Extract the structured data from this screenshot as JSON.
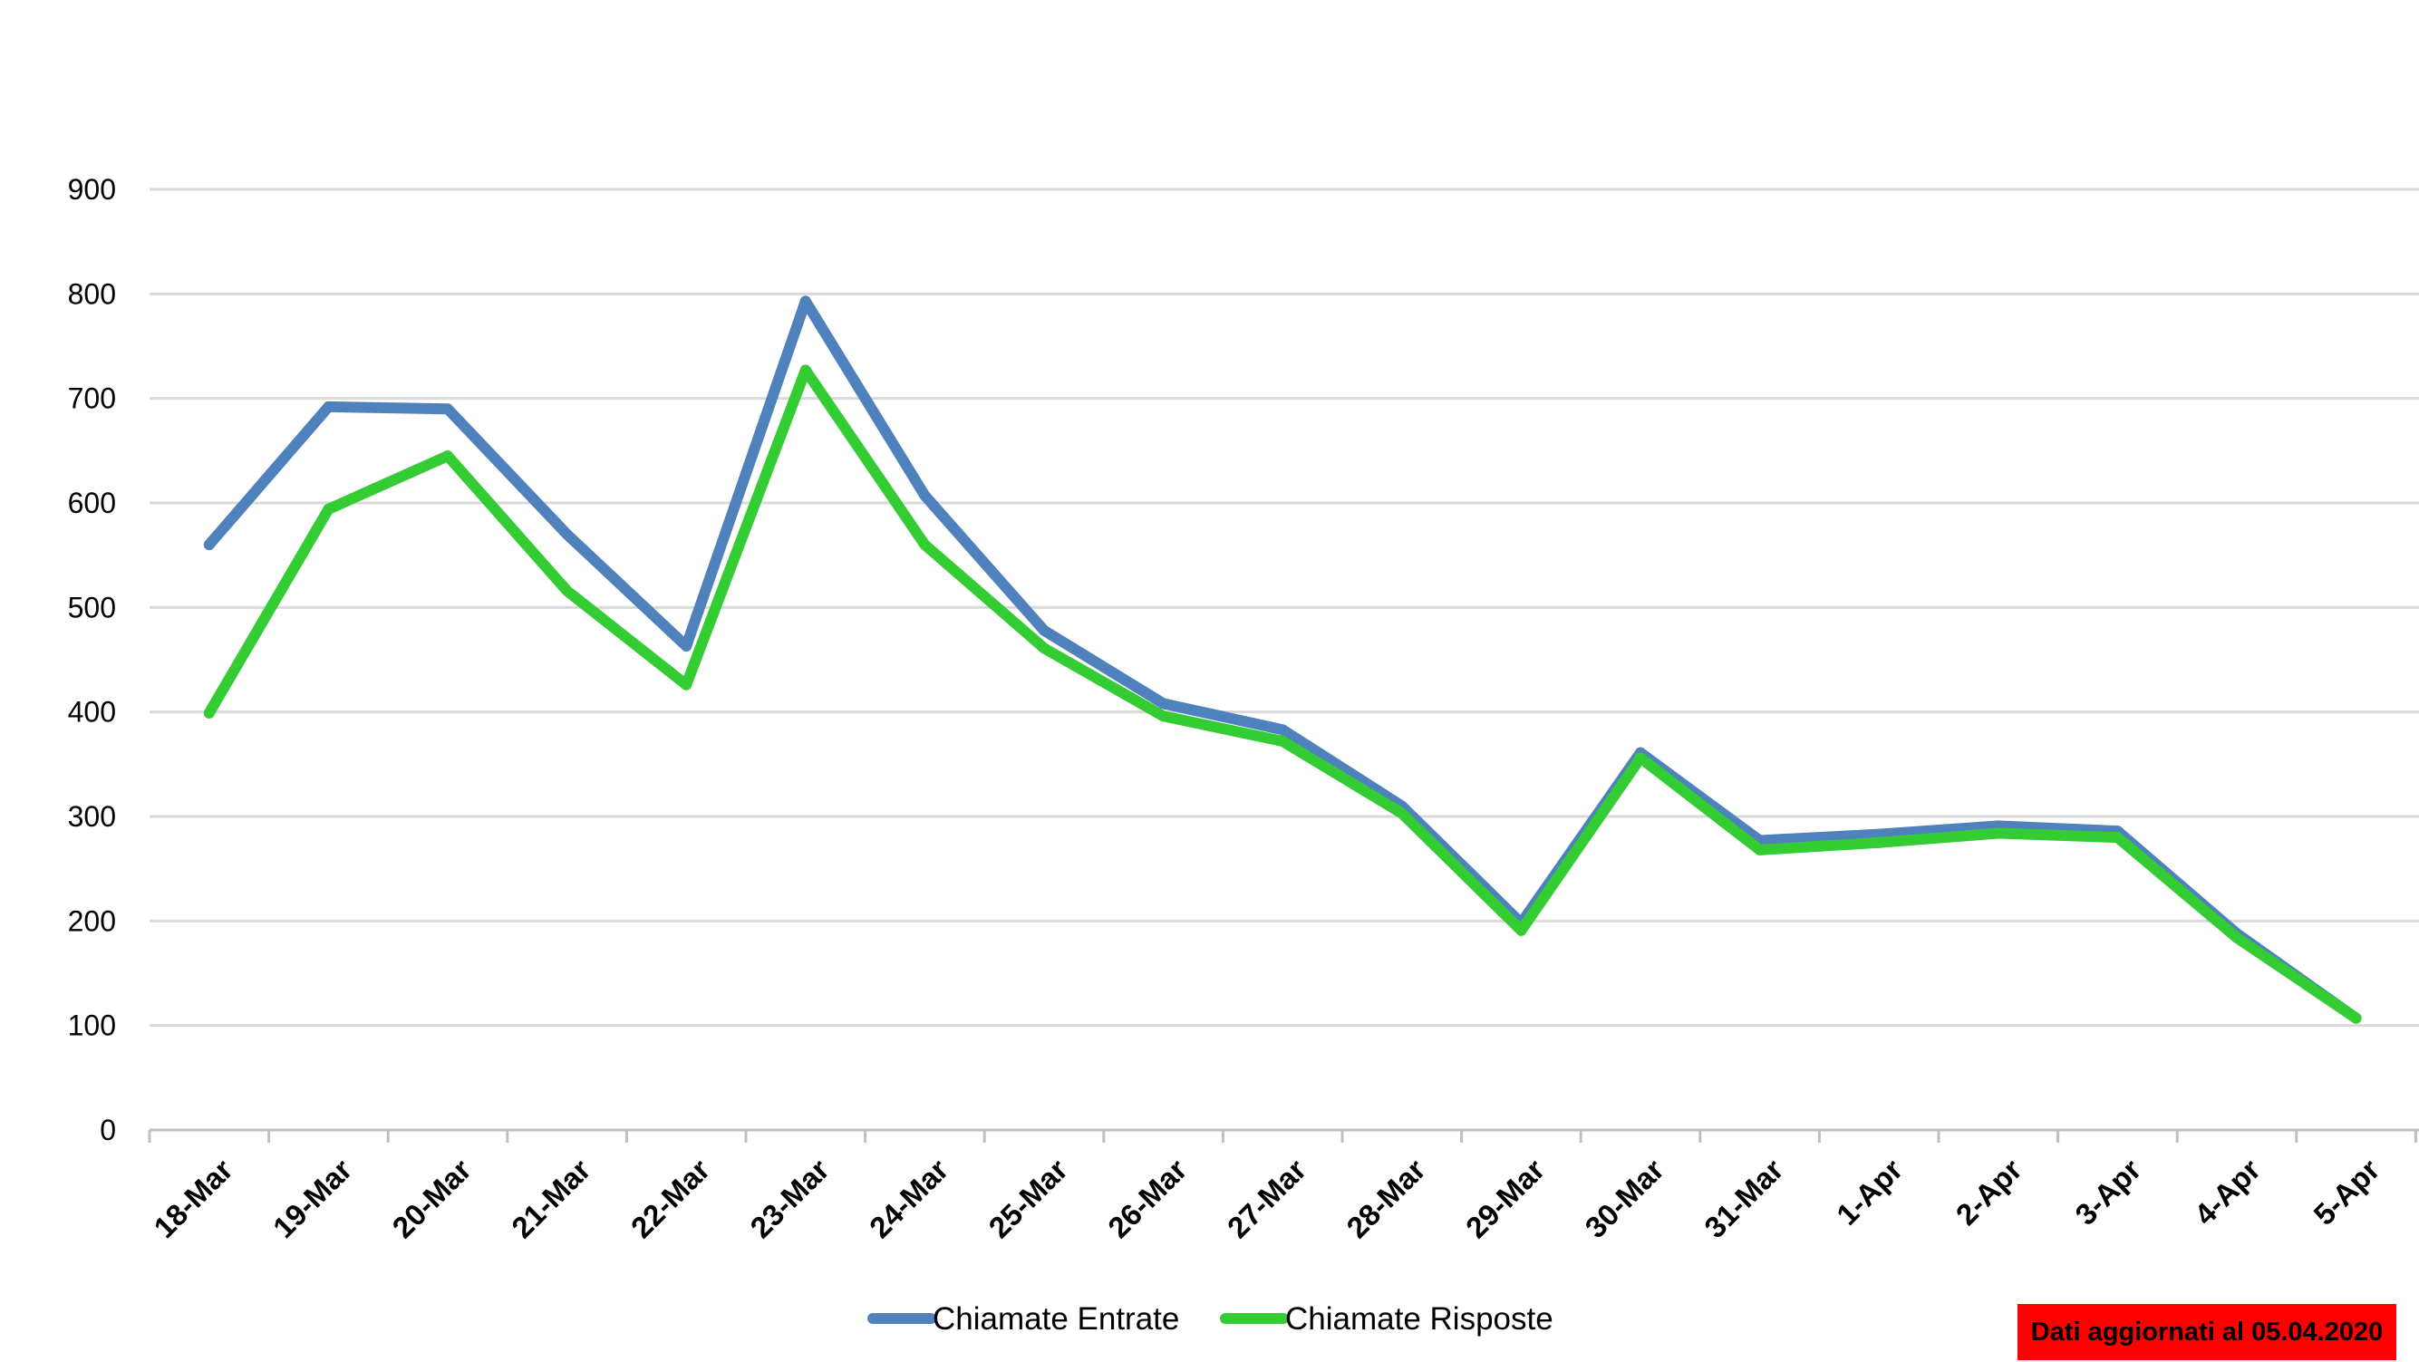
{
  "chart_data": {
    "type": "line",
    "title": "",
    "xlabel": "",
    "ylabel": "",
    "categories": [
      "18-Mar",
      "19-Mar",
      "20-Mar",
      "21-Mar",
      "22-Mar",
      "23-Mar",
      "24-Mar",
      "25-Mar",
      "26-Mar",
      "27-Mar",
      "28-Mar",
      "29-Mar",
      "30-Mar",
      "31-Mar",
      "1-Apr",
      "2-Apr",
      "3-Apr",
      "4-Apr",
      "5-Apr"
    ],
    "y_tick_labels": [
      "0",
      "100",
      "200",
      "300",
      "400",
      "500",
      "600",
      "700",
      "800",
      "900"
    ],
    "y_tick_labels_visible": [
      "0",
      "100",
      "200",
      "300",
      "400",
      "500",
      "600",
      "700",
      "800",
      "900"
    ],
    "ylim": [
      0,
      900
    ],
    "grid": true,
    "legend_position": "bottom",
    "series": [
      {
        "name": "Chiamate Entrate",
        "color": "#4f81bd",
        "values": [
          560,
          692,
          690,
          570,
          463,
          793,
          607,
          478,
          408,
          383,
          310,
          198,
          361,
          277,
          283,
          291,
          286,
          188,
          107
        ]
      },
      {
        "name": "Chiamate Risposte",
        "color": "#33cc33",
        "values": [
          399,
          594,
          645,
          516,
          426,
          727,
          560,
          461,
          396,
          372,
          303,
          191,
          356,
          268,
          275,
          284,
          280,
          184,
          107
        ]
      }
    ],
    "note": "Dati aggiornati al 05.04.2020",
    "note_color": "#ff0000"
  }
}
